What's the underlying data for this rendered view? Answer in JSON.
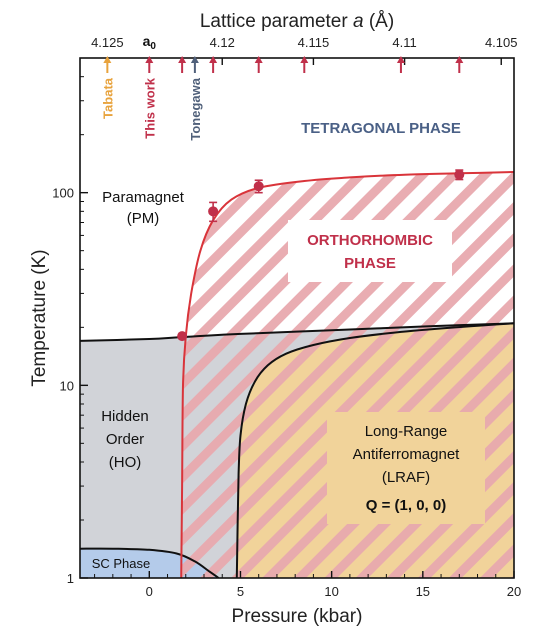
{
  "chart_data": {
    "type": "area",
    "title": "",
    "xlabel": "Pressure (kbar)",
    "ylabel": "Temperature (K)",
    "x2label": "Lattice parameter a (Å)",
    "x2label_parts": [
      "Lattice parameter ",
      "a",
      " (Å)"
    ],
    "xlim": [
      -3.8,
      20
    ],
    "ylim": [
      1,
      500
    ],
    "y_scale": "log",
    "x_ticks": [
      0,
      5,
      10,
      15,
      20
    ],
    "x_tick_labels": [
      "0",
      "5",
      "10",
      "15",
      "20"
    ],
    "y_ticks": [
      1,
      10,
      100
    ],
    "y_tick_labels": [
      "1",
      "10",
      "100"
    ],
    "x2_ticks": [
      {
        "label": "4.125",
        "x": -2.3
      },
      {
        "label": "4.12",
        "x": 4.0
      },
      {
        "label": "4.115",
        "x": 9.0
      },
      {
        "label": "4.11",
        "x": 14.0
      },
      {
        "label": "4.105",
        "x": 19.3
      }
    ],
    "a0_label": "a",
    "a0_subscript": "0",
    "a0_x": 0.0,
    "marker_arrows": [
      {
        "x": -2.3,
        "color": "#E8A33D",
        "label": "Tabata"
      },
      {
        "x": 0.0,
        "color": "#C0304A",
        "label": "This work"
      },
      {
        "x": 1.8,
        "color": "#C0304A",
        "label": ""
      },
      {
        "x": 2.5,
        "color": "#50607A",
        "label": "Tonegawa"
      },
      {
        "x": 3.5,
        "color": "#C0304A",
        "label": ""
      },
      {
        "x": 6.0,
        "color": "#C0304A",
        "label": ""
      },
      {
        "x": 8.5,
        "color": "#C0304A",
        "label": ""
      },
      {
        "x": 13.8,
        "color": "#C0304A",
        "label": ""
      },
      {
        "x": 17.0,
        "color": "#C0304A",
        "label": ""
      }
    ],
    "series": [
      {
        "name": "ORTHORHOMBIC PHASE",
        "kind": "boundary",
        "color": "#D9343A",
        "x": [
          1.75,
          1.8,
          1.85,
          2.0,
          2.3,
          2.8,
          3.5,
          4.5,
          6.0,
          8.5,
          11.0,
          14.0,
          17.0,
          20.0
        ],
        "y": [
          1,
          3,
          10,
          18,
          30,
          50,
          72,
          92,
          106,
          115,
          120,
          124,
          126,
          128
        ]
      },
      {
        "name": "Hidden Order (HO) / LRAF upper boundary",
        "kind": "boundary",
        "color": "#111111",
        "x": [
          -3.8,
          0,
          1.8,
          5,
          10,
          15,
          20
        ],
        "y": [
          17,
          17.4,
          17.8,
          18.5,
          19.3,
          20.2,
          21.0
        ]
      },
      {
        "name": "Long-Range Antiferromagnet (LRAF)",
        "kind": "boundary",
        "color": "#111111",
        "x": [
          4.8,
          4.85,
          4.9,
          5.0,
          5.3,
          5.8,
          6.5,
          7.5,
          9.0,
          11.0,
          13.5,
          16.5,
          20.0
        ],
        "y": [
          1,
          2,
          3.5,
          5.5,
          8.0,
          10.5,
          12.7,
          14.6,
          16.2,
          17.6,
          18.8,
          19.9,
          21.0
        ]
      },
      {
        "name": "SC Phase",
        "kind": "boundary",
        "color": "#111111",
        "x": [
          -3.8,
          -2.0,
          0.0,
          1.5,
          2.5,
          3.3,
          3.8
        ],
        "y": [
          1.42,
          1.42,
          1.4,
          1.34,
          1.22,
          1.08,
          1.0
        ]
      },
      {
        "name": "Measured transition points",
        "kind": "points",
        "color": "#C0304A",
        "x": [
          1.8,
          3.5,
          6.0,
          17.0
        ],
        "y": [
          18,
          80,
          108,
          124
        ],
        "yerr": [
          0,
          9,
          8,
          7
        ]
      }
    ]
  },
  "labels": {
    "tetragonal": "TETRAGONAL PHASE",
    "orthorhombic_line1": "ORTHORHOMBIC",
    "orthorhombic_line2": "PHASE",
    "paramagnet_line1": "Paramagnet",
    "paramagnet_line2": "(PM)",
    "hidden_line1": "Hidden",
    "hidden_line2": "Order",
    "hidden_line3": "(HO)",
    "lraf_line1": "Long-Range",
    "lraf_line2": "Antiferromagnet",
    "lraf_line3": "(LRAF)",
    "lraf_line4": "Q = (1, 0, 0)",
    "sc": "SC Phase"
  },
  "colors": {
    "tetragonal": "#4A6086",
    "orthorhombic_text": "#C0304A",
    "hatch": "#E8A9AE",
    "ho_fill": "#D1D3D8",
    "lraf_fill": "#F1D39A",
    "sc_fill": "#B4CBEA",
    "red_line": "#D9343A"
  }
}
